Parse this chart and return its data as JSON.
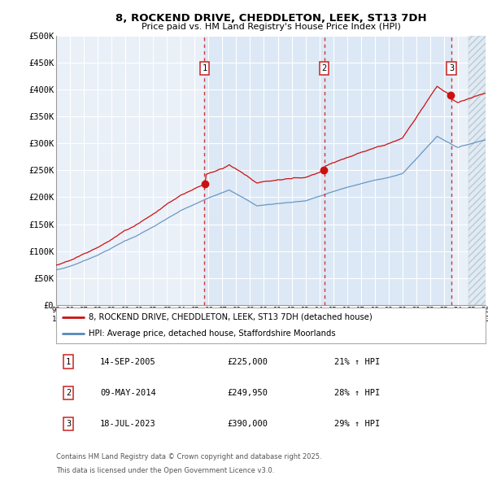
{
  "title_line1": "8, ROCKEND DRIVE, CHEDDLETON, LEEK, ST13 7DH",
  "title_line2": "Price paid vs. HM Land Registry's House Price Index (HPI)",
  "ylabel_ticks": [
    "£0",
    "£50K",
    "£100K",
    "£150K",
    "£200K",
    "£250K",
    "£300K",
    "£350K",
    "£400K",
    "£450K",
    "£500K"
  ],
  "ytick_values": [
    0,
    50000,
    100000,
    150000,
    200000,
    250000,
    300000,
    350000,
    400000,
    450000,
    500000
  ],
  "xmin": 1995,
  "xmax": 2026,
  "ymin": 0,
  "ymax": 500000,
  "sale_years_float": [
    2005.71,
    2014.36,
    2023.54
  ],
  "sale_prices": [
    225000,
    249950,
    390000
  ],
  "sale_labels": [
    "1",
    "2",
    "3"
  ],
  "vline_color": "#cc2222",
  "red_line_color": "#cc1111",
  "blue_line_color": "#5588bb",
  "shade_color": "#dce8f5",
  "hatch_color": "#c8d0d8",
  "grid_color": "#cccccc",
  "plot_bg_color": "#eaf0f8",
  "legend_line1": "8, ROCKEND DRIVE, CHEDDLETON, LEEK, ST13 7DH (detached house)",
  "legend_line2": "HPI: Average price, detached house, Staffordshire Moorlands",
  "annotation1_label": "1",
  "annotation1_date": "14-SEP-2005",
  "annotation1_price": "£225,000",
  "annotation1_hpi": "21% ↑ HPI",
  "annotation2_label": "2",
  "annotation2_date": "09-MAY-2014",
  "annotation2_price": "£249,950",
  "annotation2_hpi": "28% ↑ HPI",
  "annotation3_label": "3",
  "annotation3_date": "18-JUL-2023",
  "annotation3_price": "£390,000",
  "annotation3_hpi": "29% ↑ HPI",
  "footnote_line1": "Contains HM Land Registry data © Crown copyright and database right 2025.",
  "footnote_line2": "This data is licensed under the Open Government Licence v3.0."
}
